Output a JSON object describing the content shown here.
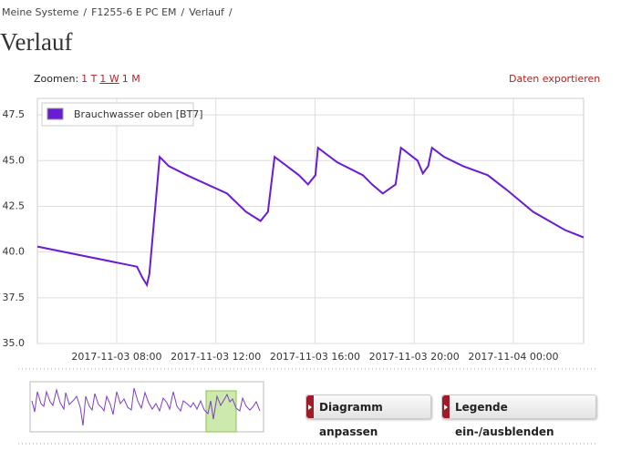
{
  "breadcrumb": {
    "items": [
      "Meine Systeme",
      "F1255-6 E PC EM",
      "Verlauf"
    ],
    "separator": "/"
  },
  "heading": "Verlauf",
  "zoom": {
    "label": "Zoomen:",
    "options": [
      "1 T",
      "1 W",
      "1 M"
    ]
  },
  "export": "Daten exportieren",
  "chart_data": {
    "type": "line",
    "x": [
      "2017-11-03 04:48",
      "2017-11-03 08:49",
      "2017-11-03 09:02",
      "2017-11-03 09:13",
      "2017-11-03 09:19",
      "2017-11-03 09:44",
      "2017-11-03 10:06",
      "2017-11-03 10:50",
      "2017-11-03 12:27",
      "2017-11-03 13:13",
      "2017-11-03 13:48",
      "2017-11-03 14:06",
      "2017-11-03 14:22",
      "2017-11-03 14:46",
      "2017-11-03 15:21",
      "2017-11-03 15:43",
      "2017-11-03 16:01",
      "2017-11-03 16:07",
      "2017-11-03 16:54",
      "2017-11-03 17:56",
      "2017-11-03 18:18",
      "2017-11-03 18:44",
      "2017-11-03 19:15",
      "2017-11-03 19:28",
      "2017-11-03 20:08",
      "2017-11-03 20:21",
      "2017-11-03 20:34",
      "2017-11-03 20:43",
      "2017-11-03 21:12",
      "2017-11-03 21:58",
      "2017-11-03 22:58",
      "2017-11-03 23:44",
      "2017-11-04 00:48",
      "2017-11-04 02:05",
      "2017-11-04 02:50"
    ],
    "series": [
      {
        "name": "Brauchwasser oben [BT7]",
        "color": "#6a1bd6",
        "values": [
          40.3,
          39.2,
          38.6,
          38.2,
          38.8,
          45.2,
          44.7,
          44.2,
          43.2,
          42.2,
          41.7,
          42.2,
          45.2,
          44.8,
          44.2,
          43.7,
          44.2,
          45.7,
          44.9,
          44.2,
          43.7,
          43.2,
          43.7,
          45.7,
          45.0,
          44.3,
          44.7,
          45.7,
          45.2,
          44.7,
          44.2,
          43.4,
          42.2,
          41.2,
          40.8
        ]
      }
    ],
    "xlim": [
      "2017-11-03 04:48",
      "2017-11-04 02:50"
    ],
    "xticks": [
      "2017-11-03 08:00",
      "2017-11-03 12:00",
      "2017-11-03 16:00",
      "2017-11-03 20:00",
      "2017-11-04 00:00"
    ],
    "ylim": [
      35,
      48.4
    ],
    "yticks": [
      {
        "value": 35,
        "label": "35.0"
      },
      37.5,
      {
        "value": 40,
        "label": "40.0"
      },
      42.5,
      {
        "value": 45,
        "label": "45.0"
      },
      47.5
    ],
    "grid": true,
    "legend": "upper left"
  },
  "buttons": [
    "Diagramm anpassen",
    "Legende ein-/ausblenden"
  ]
}
